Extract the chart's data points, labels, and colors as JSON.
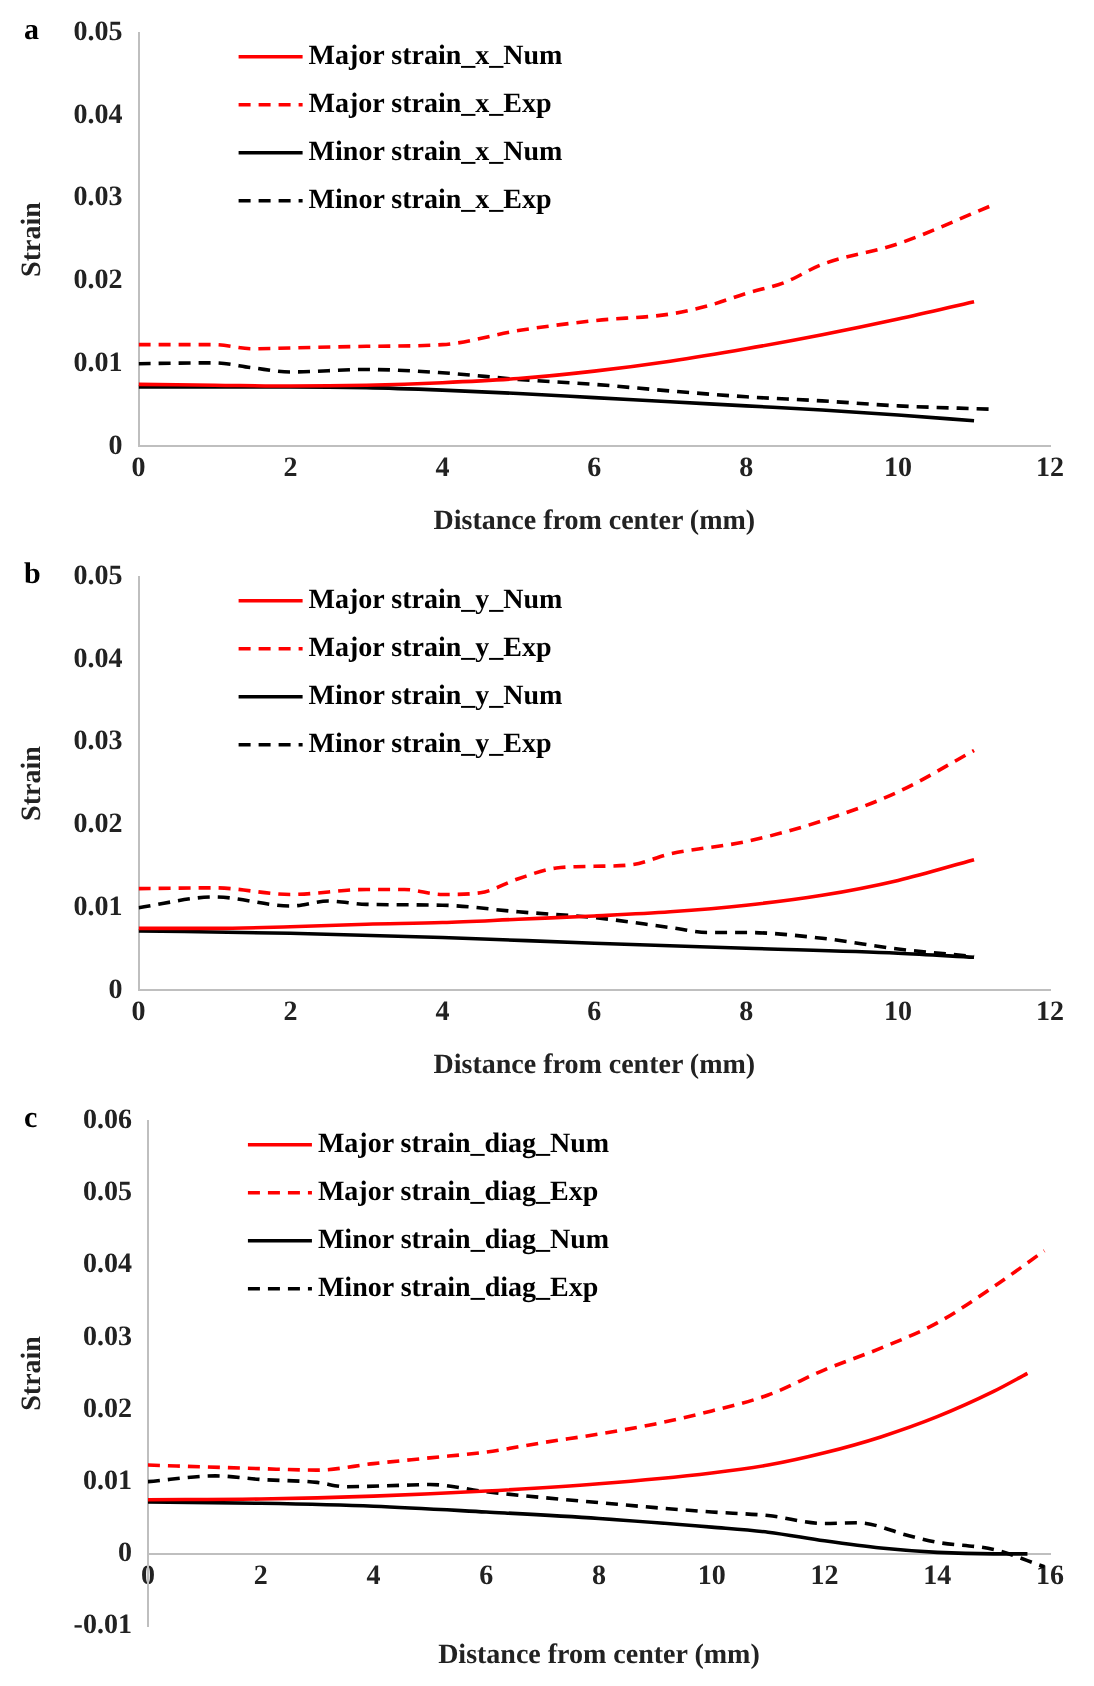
{
  "chart_data": [
    {
      "type": "line",
      "title": "a",
      "xlabel": "Distance from center (mm)",
      "ylabel": "Strain",
      "xlim": [
        0,
        12
      ],
      "xticks": [
        0,
        2,
        4,
        6,
        8,
        10,
        12
      ],
      "ylim": [
        0,
        0.05
      ],
      "yticks": [
        0,
        0.01,
        0.02,
        0.03,
        0.04,
        0.05
      ],
      "grid": false,
      "legend": "top left",
      "marker": "none",
      "series": [
        {
          "name": "Major strain_x_Num",
          "color": "#ff0000",
          "line_style": "solid",
          "x": [
            0,
            1,
            2,
            3,
            4,
            5,
            6,
            7,
            8,
            9,
            10,
            11
          ],
          "values": [
            0.0075,
            0.0074,
            0.0073,
            0.0074,
            0.0077,
            0.0082,
            0.0091,
            0.0103,
            0.0118,
            0.0135,
            0.0154,
            0.0175
          ]
        },
        {
          "name": "Major strain_x_Exp",
          "color": "#ff0000",
          "line_style": "dashed",
          "x": [
            0,
            1,
            1.5,
            2,
            3,
            4,
            5,
            6,
            7,
            7.5,
            8,
            8.5,
            9,
            10,
            11.2
          ],
          "values": [
            0.0123,
            0.0123,
            0.0118,
            0.0119,
            0.0121,
            0.0123,
            0.014,
            0.0152,
            0.016,
            0.017,
            0.0185,
            0.0198,
            0.022,
            0.0245,
            0.029
          ]
        },
        {
          "name": "Minor strain_x_Num",
          "color": "#000000",
          "line_style": "solid",
          "x": [
            0,
            1,
            2,
            3,
            4,
            5,
            6,
            7,
            8,
            9,
            10,
            11
          ],
          "values": [
            0.0072,
            0.0072,
            0.0072,
            0.0071,
            0.0068,
            0.0064,
            0.0059,
            0.0054,
            0.0049,
            0.0044,
            0.0038,
            0.0031
          ]
        },
        {
          "name": "Minor strain_x_Exp",
          "color": "#000000",
          "line_style": "dashed",
          "x": [
            0,
            1,
            1.5,
            2,
            3,
            4,
            5,
            6,
            7,
            8,
            9,
            10,
            11.2
          ],
          "values": [
            0.01,
            0.0101,
            0.0095,
            0.009,
            0.0093,
            0.0089,
            0.0081,
            0.0075,
            0.0067,
            0.006,
            0.0055,
            0.0049,
            0.0045
          ]
        }
      ]
    },
    {
      "type": "line",
      "title": "b",
      "xlabel": "Distance from center (mm)",
      "ylabel": "Strain",
      "xlim": [
        0,
        12
      ],
      "xticks": [
        0,
        2,
        4,
        6,
        8,
        10,
        12
      ],
      "ylim": [
        0,
        0.05
      ],
      "yticks": [
        0,
        0.01,
        0.02,
        0.03,
        0.04,
        0.05
      ],
      "grid": false,
      "legend": "top left",
      "marker": "none",
      "series": [
        {
          "name": "Major strain_y_Num",
          "color": "#ff0000",
          "line_style": "solid",
          "x": [
            0,
            1,
            2,
            3,
            4,
            5,
            6,
            7,
            8,
            9,
            10,
            11
          ],
          "values": [
            0.0075,
            0.0075,
            0.0077,
            0.008,
            0.0082,
            0.0086,
            0.009,
            0.0095,
            0.0103,
            0.0115,
            0.0133,
            0.0158
          ]
        },
        {
          "name": "Major strain_y_Exp",
          "color": "#ff0000",
          "line_style": "dashed",
          "x": [
            0,
            1,
            2,
            3,
            3.5,
            4,
            4.5,
            5,
            5.5,
            6,
            6.5,
            7,
            8,
            9,
            10,
            11
          ],
          "values": [
            0.0123,
            0.0124,
            0.0116,
            0.0122,
            0.0122,
            0.0116,
            0.0118,
            0.0135,
            0.0148,
            0.015,
            0.0152,
            0.0165,
            0.018,
            0.0205,
            0.024,
            0.029
          ]
        },
        {
          "name": "Minor strain_y_Num",
          "color": "#000000",
          "line_style": "solid",
          "x": [
            0,
            2,
            4,
            6,
            8,
            10,
            11
          ],
          "values": [
            0.0072,
            0.0069,
            0.0064,
            0.0057,
            0.0051,
            0.0045,
            0.004
          ]
        },
        {
          "name": "Minor strain_y_Exp",
          "color": "#000000",
          "line_style": "dashed",
          "x": [
            0,
            1,
            2,
            2.5,
            3,
            4,
            5,
            6,
            7,
            7.5,
            8,
            9,
            10,
            11
          ],
          "values": [
            0.01,
            0.0113,
            0.0102,
            0.0108,
            0.0104,
            0.0103,
            0.0095,
            0.0088,
            0.0076,
            0.007,
            0.007,
            0.0063,
            0.005,
            0.0041
          ]
        }
      ]
    },
    {
      "type": "line",
      "title": "c",
      "xlabel": "Distance from center (mm)",
      "ylabel": "Strain",
      "xlim": [
        0,
        16
      ],
      "xticks": [
        0,
        2,
        4,
        6,
        8,
        10,
        12,
        14,
        16
      ],
      "ylim": [
        -0.01,
        0.06
      ],
      "yticks": [
        -0.01,
        0,
        0.01,
        0.02,
        0.03,
        0.04,
        0.05,
        0.06
      ],
      "grid": false,
      "legend": "top left",
      "marker": "none",
      "series": [
        {
          "name": "Major strain_diag_Num",
          "color": "#ff0000",
          "line_style": "solid",
          "x": [
            0,
            2,
            4,
            6,
            8,
            10,
            11,
            12,
            13,
            14,
            15,
            15.6
          ],
          "values": [
            0.0075,
            0.0076,
            0.008,
            0.0087,
            0.0097,
            0.0112,
            0.0123,
            0.014,
            0.0162,
            0.019,
            0.0225,
            0.025
          ]
        },
        {
          "name": "Major strain_diag_Exp",
          "color": "#ff0000",
          "line_style": "dashed",
          "x": [
            0,
            2,
            3,
            4,
            5,
            6,
            7,
            8,
            9,
            10,
            11,
            12,
            13,
            14,
            15,
            15.9
          ],
          "values": [
            0.0123,
            0.0118,
            0.0116,
            0.0125,
            0.0133,
            0.0141,
            0.0154,
            0.0166,
            0.018,
            0.0198,
            0.022,
            0.0255,
            0.0285,
            0.032,
            0.037,
            0.042
          ]
        },
        {
          "name": "Minor strain_diag_Num",
          "color": "#000000",
          "line_style": "solid",
          "x": [
            0,
            2,
            4,
            6,
            8,
            10,
            11,
            12,
            13,
            14,
            15,
            15.6
          ],
          "values": [
            0.0072,
            0.007,
            0.0066,
            0.0058,
            0.0049,
            0.0037,
            0.003,
            0.0018,
            0.0008,
            0.0002,
            0,
            0
          ]
        },
        {
          "name": "Minor strain_diag_Exp",
          "color": "#000000",
          "line_style": "dashed",
          "x": [
            0,
            1.2,
            2,
            3,
            3.5,
            4.5,
            5,
            6,
            7,
            8,
            9,
            10,
            11,
            12,
            12.6,
            13.5,
            14,
            15,
            15.9
          ],
          "values": [
            0.01,
            0.0108,
            0.0103,
            0.0099,
            0.0093,
            0.0095,
            0.0096,
            0.0086,
            0.0078,
            0.0071,
            0.0064,
            0.0058,
            0.0053,
            0.0042,
            0.0043,
            0.0025,
            0.0016,
            0.0006,
            -0.0018
          ]
        }
      ]
    }
  ]
}
